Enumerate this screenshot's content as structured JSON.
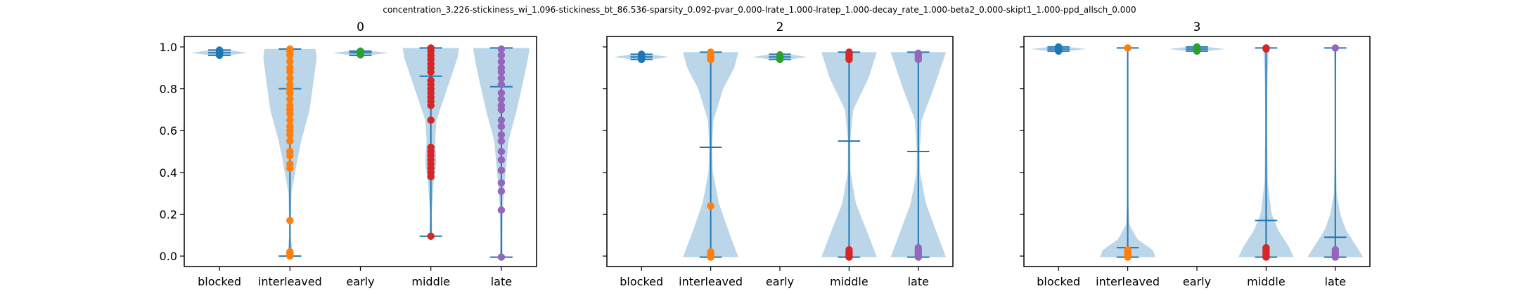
{
  "figure": {
    "suptitle": "concentration_3.226-stickiness_wi_1.096-stickiness_bt_86.536-sparsity_0.092-pvar_0.000-lrate_1.000-lratep_1.000-decay_rate_1.000-beta2_0.000-skipt1_1.000-ppd_allsch_0.000"
  },
  "chart_data": [
    {
      "type": "violin",
      "title": "0",
      "categories": [
        "blocked",
        "interleaved",
        "early",
        "middle",
        "late"
      ],
      "ylim": [
        -0.05,
        1.05
      ],
      "yticks": [
        "0.0",
        "0.2",
        "0.4",
        "0.6",
        "0.8",
        "1.0"
      ],
      "yticklabels_visible": true,
      "series": [
        {
          "category": "blocked",
          "color": "#1f77b4",
          "min": 0.96,
          "max": 0.985,
          "mean": 0.972,
          "density": [
            [
              0.955,
              0.05
            ],
            [
              0.972,
              1.0
            ],
            [
              0.99,
              0.05
            ]
          ],
          "points": [
            0.96,
            0.965,
            0.97,
            0.972,
            0.975,
            0.98,
            0.985
          ]
        },
        {
          "category": "interleaved",
          "color": "#ff7f0e",
          "min": 0.0,
          "max": 0.99,
          "mean": 0.8,
          "density": [
            [
              0.0,
              0.12
            ],
            [
              0.03,
              0.08
            ],
            [
              0.1,
              0.02
            ],
            [
              0.3,
              0.05
            ],
            [
              0.45,
              0.25
            ],
            [
              0.55,
              0.4
            ],
            [
              0.7,
              0.7
            ],
            [
              0.85,
              0.85
            ],
            [
              0.95,
              0.95
            ],
            [
              0.99,
              0.9
            ]
          ],
          "points": [
            0.0,
            0.01,
            0.02,
            0.17,
            0.42,
            0.44,
            0.48,
            0.5,
            0.55,
            0.58,
            0.6,
            0.62,
            0.65,
            0.68,
            0.7,
            0.72,
            0.75,
            0.78,
            0.8,
            0.82,
            0.85,
            0.88,
            0.9,
            0.93,
            0.96,
            0.98,
            0.99
          ]
        },
        {
          "category": "early",
          "color": "#2ca02c",
          "min": 0.96,
          "max": 0.98,
          "mean": 0.972,
          "density": [
            [
              0.955,
              0.05
            ],
            [
              0.972,
              1.0
            ],
            [
              0.985,
              0.05
            ]
          ],
          "points": [
            0.962,
            0.968,
            0.972,
            0.976,
            0.98
          ]
        },
        {
          "category": "middle",
          "color": "#d62728",
          "min": 0.095,
          "max": 0.995,
          "mean": 0.86,
          "density": [
            [
              0.095,
              0.05
            ],
            [
              0.2,
              0.03
            ],
            [
              0.35,
              0.1
            ],
            [
              0.45,
              0.2
            ],
            [
              0.55,
              0.15
            ],
            [
              0.65,
              0.2
            ],
            [
              0.75,
              0.45
            ],
            [
              0.85,
              0.7
            ],
            [
              0.95,
              0.95
            ],
            [
              0.995,
              1.0
            ]
          ],
          "points": [
            0.095,
            0.38,
            0.4,
            0.42,
            0.44,
            0.46,
            0.48,
            0.5,
            0.52,
            0.65,
            0.72,
            0.74,
            0.76,
            0.78,
            0.8,
            0.82,
            0.84,
            0.88,
            0.9,
            0.92,
            0.94,
            0.96,
            0.98,
            0.995
          ]
        },
        {
          "category": "late",
          "color": "#9467bd",
          "min": -0.005,
          "max": 0.995,
          "mean": 0.81,
          "density": [
            [
              -0.005,
              0.05
            ],
            [
              0.1,
              0.04
            ],
            [
              0.25,
              0.06
            ],
            [
              0.4,
              0.15
            ],
            [
              0.55,
              0.25
            ],
            [
              0.7,
              0.55
            ],
            [
              0.85,
              0.8
            ],
            [
              0.95,
              0.95
            ],
            [
              0.995,
              1.0
            ]
          ],
          "points": [
            -0.005,
            0.22,
            0.31,
            0.35,
            0.41,
            0.46,
            0.5,
            0.55,
            0.58,
            0.62,
            0.65,
            0.7,
            0.72,
            0.75,
            0.78,
            0.82,
            0.85,
            0.88,
            0.9,
            0.93,
            0.96,
            0.99
          ]
        }
      ]
    },
    {
      "type": "violin",
      "title": "2",
      "categories": [
        "blocked",
        "interleaved",
        "early",
        "middle",
        "late"
      ],
      "ylim": [
        -0.05,
        1.05
      ],
      "yticks": [
        "0.0",
        "0.2",
        "0.4",
        "0.6",
        "0.8",
        "1.0"
      ],
      "yticklabels_visible": false,
      "series": [
        {
          "category": "blocked",
          "color": "#1f77b4",
          "min": 0.94,
          "max": 0.965,
          "mean": 0.952,
          "density": [
            [
              0.935,
              0.05
            ],
            [
              0.952,
              1.0
            ],
            [
              0.97,
              0.05
            ]
          ],
          "points": [
            0.94,
            0.945,
            0.95,
            0.955,
            0.96,
            0.965
          ]
        },
        {
          "category": "interleaved",
          "color": "#ff7f0e",
          "min": -0.005,
          "max": 0.975,
          "mean": 0.52,
          "density": [
            [
              -0.005,
              1.0
            ],
            [
              0.1,
              0.7
            ],
            [
              0.25,
              0.3
            ],
            [
              0.4,
              0.08
            ],
            [
              0.52,
              0.05
            ],
            [
              0.65,
              0.1
            ],
            [
              0.8,
              0.45
            ],
            [
              0.9,
              0.85
            ],
            [
              0.975,
              1.0
            ]
          ],
          "points": [
            -0.005,
            0.0,
            0.01,
            0.02,
            0.24,
            0.94,
            0.95,
            0.96,
            0.97,
            0.975
          ]
        },
        {
          "category": "early",
          "color": "#2ca02c",
          "min": 0.94,
          "max": 0.965,
          "mean": 0.952,
          "density": [
            [
              0.935,
              0.05
            ],
            [
              0.952,
              1.0
            ],
            [
              0.97,
              0.05
            ]
          ],
          "points": [
            0.94,
            0.948,
            0.955,
            0.962
          ]
        },
        {
          "category": "middle",
          "color": "#d62728",
          "min": -0.005,
          "max": 0.975,
          "mean": 0.55,
          "density": [
            [
              -0.005,
              1.0
            ],
            [
              0.1,
              0.7
            ],
            [
              0.25,
              0.25
            ],
            [
              0.4,
              0.05
            ],
            [
              0.55,
              0.04
            ],
            [
              0.7,
              0.15
            ],
            [
              0.85,
              0.7
            ],
            [
              0.975,
              1.0
            ]
          ],
          "points": [
            -0.005,
            0.0,
            0.01,
            0.02,
            0.03,
            0.94,
            0.95,
            0.96,
            0.97,
            0.975
          ]
        },
        {
          "category": "late",
          "color": "#9467bd",
          "min": -0.005,
          "max": 0.975,
          "mean": 0.5,
          "density": [
            [
              -0.005,
              1.0
            ],
            [
              0.1,
              0.7
            ],
            [
              0.25,
              0.28
            ],
            [
              0.4,
              0.06
            ],
            [
              0.5,
              0.05
            ],
            [
              0.65,
              0.12
            ],
            [
              0.8,
              0.55
            ],
            [
              0.975,
              1.0
            ]
          ],
          "points": [
            -0.005,
            0.0,
            0.01,
            0.02,
            0.03,
            0.04,
            0.94,
            0.95,
            0.96,
            0.97
          ]
        }
      ]
    },
    {
      "type": "violin",
      "title": "3",
      "categories": [
        "blocked",
        "interleaved",
        "early",
        "middle",
        "late"
      ],
      "ylim": [
        -0.05,
        1.05
      ],
      "yticks": [
        "0.0",
        "0.2",
        "0.4",
        "0.6",
        "0.8",
        "1.0"
      ],
      "yticklabels_visible": false,
      "series": [
        {
          "category": "blocked",
          "color": "#1f77b4",
          "min": 0.98,
          "max": 1.0,
          "mean": 0.99,
          "density": [
            [
              0.975,
              0.05
            ],
            [
              0.99,
              1.0
            ],
            [
              1.005,
              0.05
            ]
          ],
          "points": [
            0.98,
            0.985,
            0.99,
            0.995,
            1.0
          ]
        },
        {
          "category": "interleaved",
          "color": "#ff7f0e",
          "min": -0.005,
          "max": 0.995,
          "mean": 0.04,
          "density": [
            [
              -0.005,
              1.0
            ],
            [
              0.03,
              0.9
            ],
            [
              0.08,
              0.35
            ],
            [
              0.15,
              0.06
            ],
            [
              0.3,
              0.01
            ],
            [
              0.6,
              0.005
            ],
            [
              0.995,
              0.02
            ]
          ],
          "points": [
            -0.005,
            0.0,
            0.005,
            0.01,
            0.02,
            0.03,
            0.995
          ]
        },
        {
          "category": "early",
          "color": "#2ca02c",
          "min": 0.98,
          "max": 1.0,
          "mean": 0.99,
          "density": [
            [
              0.975,
              0.05
            ],
            [
              0.99,
              1.0
            ],
            [
              1.005,
              0.05
            ]
          ],
          "points": [
            0.98,
            0.985,
            0.99,
            0.995,
            1.0
          ]
        },
        {
          "category": "middle",
          "color": "#d62728",
          "min": -0.005,
          "max": 0.995,
          "mean": 0.17,
          "density": [
            [
              -0.005,
              1.0
            ],
            [
              0.05,
              0.8
            ],
            [
              0.12,
              0.45
            ],
            [
              0.2,
              0.2
            ],
            [
              0.35,
              0.06
            ],
            [
              0.6,
              0.03
            ],
            [
              0.85,
              0.05
            ],
            [
              0.95,
              0.08
            ],
            [
              0.995,
              0.1
            ]
          ],
          "points": [
            -0.005,
            0.0,
            0.01,
            0.02,
            0.03,
            0.04,
            0.99,
            0.995
          ]
        },
        {
          "category": "late",
          "color": "#9467bd",
          "min": -0.005,
          "max": 0.995,
          "mean": 0.09,
          "density": [
            [
              -0.005,
              1.0
            ],
            [
              0.05,
              0.75
            ],
            [
              0.12,
              0.4
            ],
            [
              0.2,
              0.18
            ],
            [
              0.3,
              0.05
            ],
            [
              0.5,
              0.02
            ],
            [
              0.8,
              0.02
            ],
            [
              0.995,
              0.04
            ]
          ],
          "points": [
            -0.005,
            0.0,
            0.01,
            0.02,
            0.03,
            0.995
          ]
        }
      ]
    }
  ]
}
